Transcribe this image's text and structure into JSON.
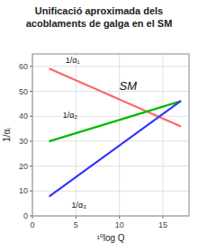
{
  "chart_data": {
    "type": "line",
    "title": "Unificació aproximada dels\nacoblaments de galga en el SM",
    "x_label": "¹⁰log Q",
    "y_label": "1/αᵢ",
    "xlim": [
      0,
      18
    ],
    "ylim": [
      0,
      65
    ],
    "xticks": [
      0,
      5,
      10,
      15
    ],
    "yticks": [
      0,
      10,
      20,
      30,
      40,
      50,
      60
    ],
    "grid": true,
    "series": [
      {
        "x": [
          2,
          17
        ],
        "values": [
          59,
          36
        ],
        "color": "#ff6666"
      },
      {
        "x": [
          2,
          17
        ],
        "values": [
          30,
          46
        ],
        "color": "#00bb00"
      },
      {
        "x": [
          2,
          17
        ],
        "values": [
          8,
          46
        ],
        "color": "#3333ff"
      }
    ],
    "annotations": [
      {
        "text": "1/α₁",
        "x": 3.8,
        "y": 60.5
      },
      {
        "text": "1/α₂",
        "x": 3.5,
        "y": 38.5
      },
      {
        "text": "1/α₃",
        "x": 4.5,
        "y": 6.5
      },
      {
        "text": "SM",
        "x": 11,
        "y": 52
      }
    ]
  }
}
